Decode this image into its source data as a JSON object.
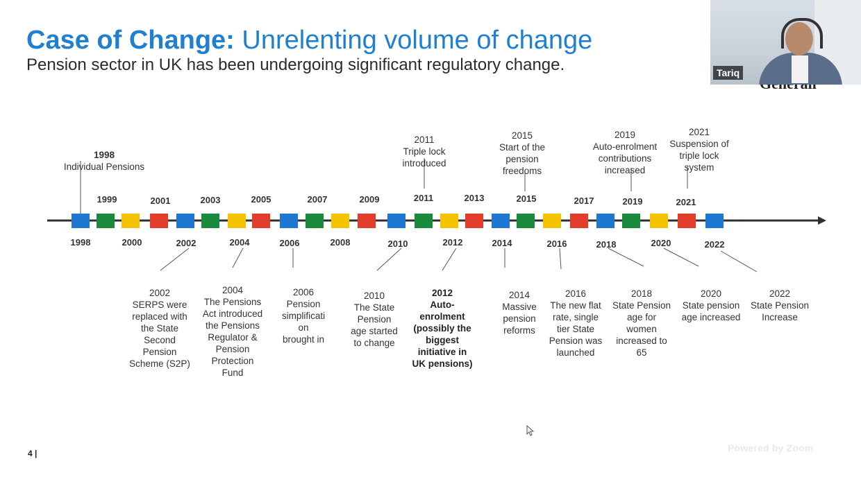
{
  "slide": {
    "title_lead": "Case of Change:",
    "title_rest": "Unrelenting volume of change",
    "subtitle": "Pension sector in UK has been undergoing significant regulatory change.",
    "page_number": "4 |"
  },
  "video": {
    "participant_name": "Tariq",
    "overlap_text": "Generali"
  },
  "zoom_watermark": "Powered by Zoom",
  "timeline": {
    "colors": {
      "blue": "#1e78d2",
      "green": "#1a8a3d",
      "yellow": "#f5c400",
      "red": "#e23c2b",
      "axis": "#2f2f2f"
    },
    "top_years": [
      "1999",
      "2001",
      "2003",
      "2005",
      "2007",
      "2009",
      "2011",
      "2013",
      "2015",
      "2017",
      "2019",
      "2021"
    ],
    "bottom_years": [
      "1998",
      "2000",
      "2002",
      "2004",
      "2006",
      "2008",
      "2010",
      "2012",
      "2014",
      "2016",
      "2018",
      "2020",
      "2022"
    ],
    "notes": [
      {
        "year": "1998",
        "text": "Individual Pensions"
      },
      {
        "year": "2011",
        "text": "Triple lock\nintroduced"
      },
      {
        "year": "2015",
        "text": "Start of the\npension\nfreedoms"
      },
      {
        "year": "2019",
        "text": "Auto-enrolment\ncontributions\nincreased"
      },
      {
        "year": "2021",
        "text": "Suspension of\ntriple lock\nsystem"
      },
      {
        "year": "2002",
        "text": "SERPS were\nreplaced with\nthe State\nSecond\nPension\nScheme (S2P)"
      },
      {
        "year": "2004",
        "text": "The Pensions\nAct introduced\nthe Pensions\nRegulator &\nPension\nProtection\nFund"
      },
      {
        "year": "2006",
        "text": "Pension\nsimplificati\non\nbrought in"
      },
      {
        "year": "2010",
        "text": "The State\nPension\nage started\nto change"
      },
      {
        "year": "2012",
        "text": "Auto-\nenrolment\n(possibly the\nbiggest\ninitiative in\nUK pensions)"
      },
      {
        "year": "2014",
        "text": "Massive\npension\nreforms"
      },
      {
        "year": "2016",
        "text": "The new flat\nrate, single\ntier State\nPension was\nlaunched"
      },
      {
        "year": "2018",
        "text": "State Pension\nage for\nwomen\nincreased to\n65"
      },
      {
        "year": "2020",
        "text": "State pension\nage increased"
      },
      {
        "year": "2022",
        "text": "State Pension\nIncrease"
      }
    ]
  }
}
